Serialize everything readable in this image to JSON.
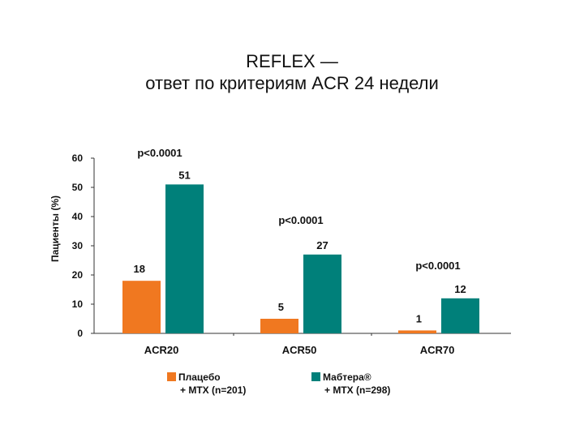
{
  "chart_data": {
    "type": "bar",
    "title": [
      "REFLEX —",
      "ответ по критериям ACR 24 недели"
    ],
    "ylabel": "Пациенты (%)",
    "xlabel": "",
    "ylim": [
      0,
      60
    ],
    "yticks": [
      0,
      10,
      20,
      30,
      40,
      50,
      60
    ],
    "categories": [
      "ACR20",
      "ACR50",
      "ACR70"
    ],
    "series": [
      {
        "name": "Плацебо + МТХ (n=201)",
        "legend_lines": [
          "Плацебо",
          "+ МТХ (n=201)"
        ],
        "color": "#f07820",
        "values": [
          18,
          5,
          1
        ]
      },
      {
        "name": "Мабтера® + МТХ (n=298)",
        "legend_lines": [
          "Мабтера®",
          "+ МТХ (n=298)"
        ],
        "color": "#00807a",
        "values": [
          51,
          27,
          12
        ]
      }
    ],
    "annotations": [
      "p<0.0001",
      "p<0.0001",
      "p<0.0001"
    ],
    "grid": false,
    "legend_position": "bottom"
  }
}
